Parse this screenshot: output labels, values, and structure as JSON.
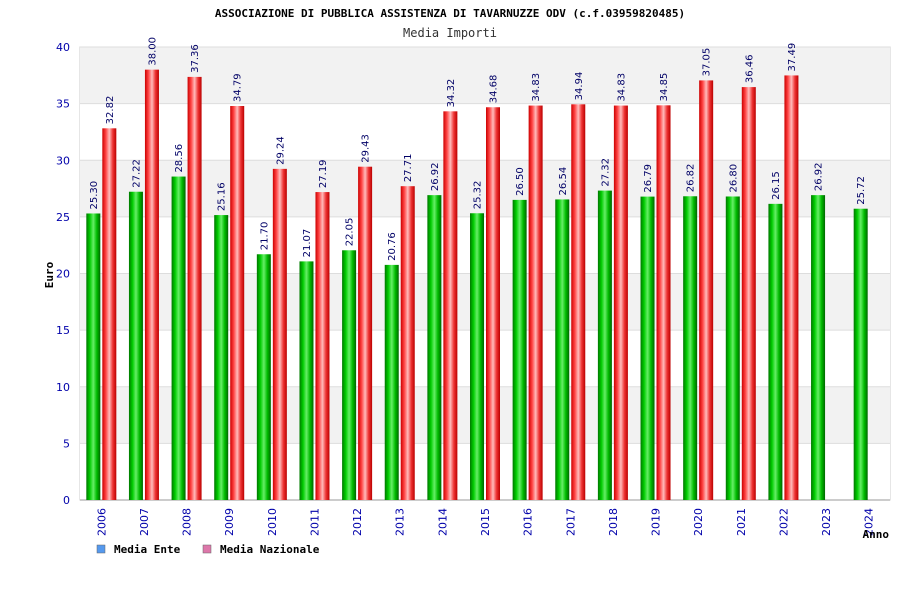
{
  "chart_data": {
    "type": "bar",
    "title": "ASSOCIAZIONE DI PUBBLICA ASSISTENZA DI TAVARNUZZE ODV (c.f.03959820485)",
    "subtitle": "Media Importi",
    "xlabel": "Anno",
    "ylabel": "Euro",
    "ylim": [
      0,
      40
    ],
    "yticks": [
      0,
      5,
      10,
      15,
      20,
      25,
      30,
      35,
      40
    ],
    "categories": [
      "2006",
      "2007",
      "2008",
      "2009",
      "2010",
      "2011",
      "2012",
      "2013",
      "2014",
      "2015",
      "2016",
      "2017",
      "2018",
      "2019",
      "2020",
      "2021",
      "2022",
      "2023",
      "2024"
    ],
    "series": [
      {
        "name": "Media Ente",
        "color": "#00aa00",
        "legend_color": "#5599ee",
        "values": [
          25.3,
          27.22,
          28.56,
          25.16,
          21.7,
          21.07,
          22.05,
          20.76,
          26.92,
          25.32,
          26.5,
          26.54,
          27.32,
          26.79,
          26.82,
          26.8,
          26.15,
          26.92,
          25.72
        ],
        "labels": [
          "25.30",
          "27.22",
          "28.56",
          "25.16",
          "21.70",
          "21.07",
          "22.05",
          "20.76",
          "26.92",
          "25.32",
          "26.50",
          "26.54",
          "27.32",
          "26.79",
          "26.82",
          "26.80",
          "26.15",
          "26.92",
          "25.72"
        ]
      },
      {
        "name": "Media Nazionale",
        "color": "#ee2222",
        "legend_color": "#dd77aa",
        "values": [
          32.82,
          38.0,
          37.36,
          34.79,
          29.24,
          27.19,
          29.43,
          27.71,
          34.32,
          34.68,
          34.83,
          34.94,
          34.83,
          34.85,
          37.05,
          36.46,
          37.49,
          null,
          null
        ],
        "labels": [
          "32.82",
          "38.00",
          "37.36",
          "34.79",
          "29.24",
          "27.19",
          "29.43",
          "27.71",
          "34.32",
          "34.68",
          "34.83",
          "34.94",
          "34.83",
          "34.85",
          "37.05",
          "36.46",
          "37.49",
          "",
          ""
        ]
      }
    ],
    "legend_position": "bottom-left",
    "grid": true
  }
}
